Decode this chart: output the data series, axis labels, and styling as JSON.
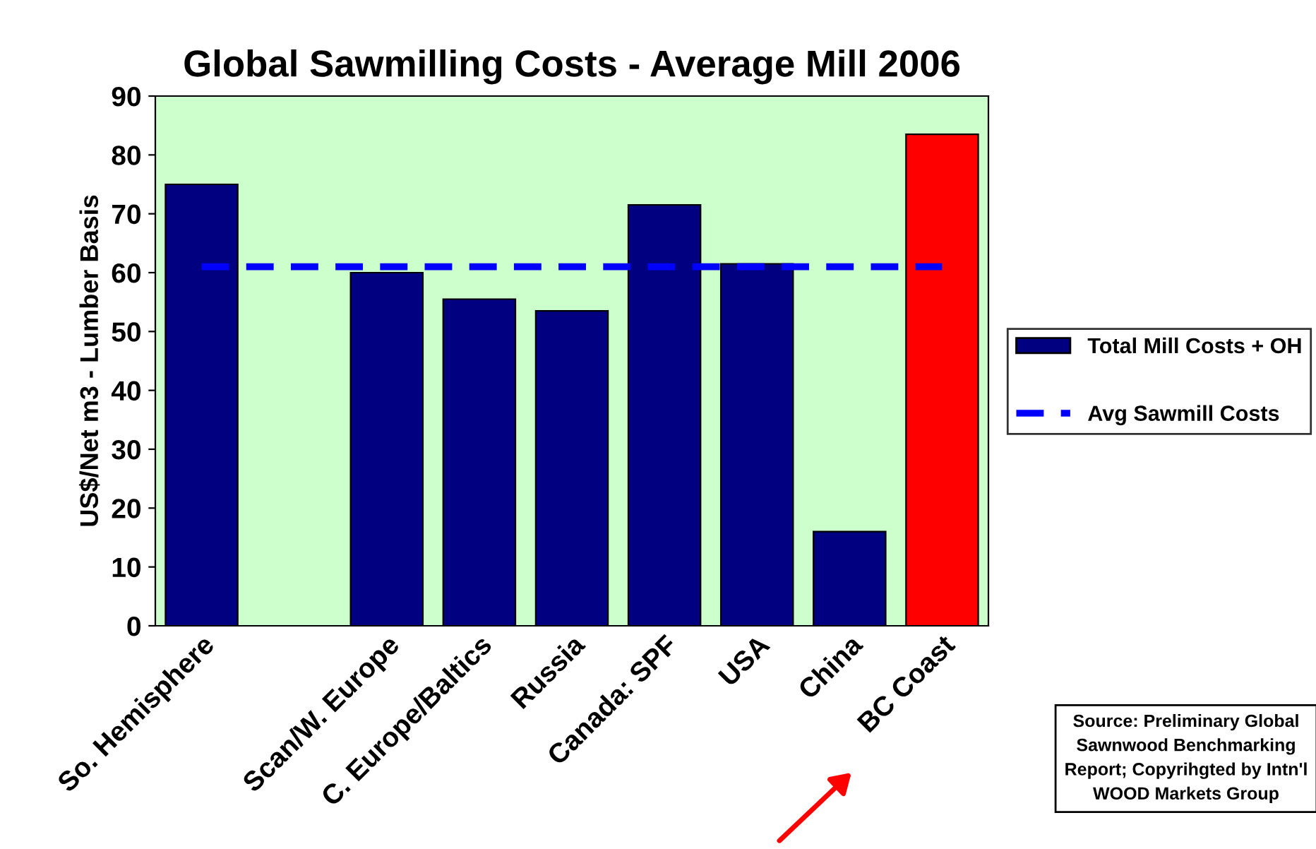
{
  "chart_data": {
    "type": "bar",
    "title": "Global Sawmilling Costs - Average Mill 2006",
    "ylabel": "US$/Net m3 - Lumber Basis",
    "categories": [
      "So. Hemisphere",
      null,
      "Scan/W. Europe",
      "C. Europe/Baltics",
      "Russia",
      "Canada: SPF",
      "USA",
      "China",
      "BC Coast"
    ],
    "series": [
      {
        "name": "Total Mill Costs + OH",
        "color": "#000080",
        "colors": [
          "#000080",
          "#000080",
          "#000080",
          "#000080",
          "#000080",
          "#000080",
          "#000080",
          "#000080",
          "#ff0000"
        ],
        "values": [
          75,
          null,
          60,
          55.5,
          53.5,
          71.5,
          61.5,
          16,
          83.5
        ]
      }
    ],
    "ref_lines": [
      {
        "axis": "y",
        "value": 61,
        "label": "Avg Sawmill Costs",
        "color": "#0000ff",
        "line_style": "dashed"
      }
    ],
    "ylim": [
      0,
      90
    ],
    "yticks": [
      0,
      10,
      20,
      30,
      40,
      50,
      60,
      70,
      80,
      90
    ],
    "grid": false,
    "legend": "right",
    "annotations": [
      "Source: Preliminary Global Sawnwood Benchmarking Report; Copyrihgted by Intn'l WOOD Markets Group"
    ]
  }
}
